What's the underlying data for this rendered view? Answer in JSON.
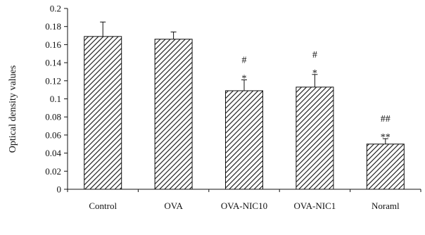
{
  "chart_data": {
    "type": "bar",
    "title": "",
    "xlabel": "",
    "ylabel": "Optical density values",
    "ylim": [
      0,
      0.2
    ],
    "yticks": [
      "0",
      "0.02",
      "0.04",
      "0.06",
      "0.08",
      "0.1",
      "0.12",
      "0.14",
      "0.16",
      "0.18",
      "0.2"
    ],
    "grid": false,
    "legend": "none",
    "categories": [
      "Control",
      "OVA",
      "OVA-NIC10",
      "OVA-NIC1",
      "Noraml"
    ],
    "values": [
      0.169,
      0.166,
      0.109,
      0.113,
      0.05
    ],
    "errors": [
      0.016,
      0.008,
      0.012,
      0.014,
      0.006
    ],
    "annotations": [
      {
        "category": "OVA-NIC10",
        "lines": [
          "#",
          "*"
        ]
      },
      {
        "category": "OVA-NIC1",
        "lines": [
          "#",
          "*"
        ]
      },
      {
        "category": "Noraml",
        "lines": [
          "##",
          "**"
        ]
      }
    ],
    "colors": {
      "bar_fill": "#ffffff",
      "bar_hatch": "#111111",
      "axis": "#111111"
    }
  }
}
